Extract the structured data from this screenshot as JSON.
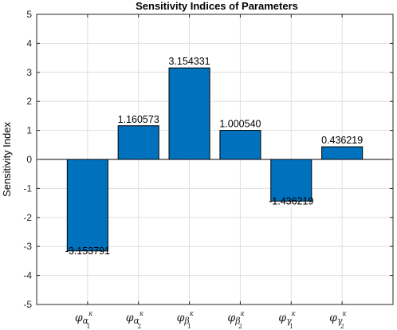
{
  "chart_data": {
    "type": "bar",
    "title": "Sensitivity Indices of Parameters",
    "xlabel": "",
    "ylabel": "Sensitivity Index",
    "ylim": [
      -5,
      5
    ],
    "yticks": [
      -5,
      -4,
      -3,
      -2,
      -1,
      0,
      1,
      2,
      3,
      4,
      5
    ],
    "grid": true,
    "categories": [
      {
        "base": "φ",
        "sub": "α",
        "sup": "κ",
        "subsub": "1"
      },
      {
        "base": "φ",
        "sub": "α",
        "sup": "κ",
        "subsub": "2"
      },
      {
        "base": "φ",
        "sub": "β",
        "sup": "κ",
        "subsub": "1"
      },
      {
        "base": "φ",
        "sub": "β",
        "sup": "κ",
        "subsub": "2"
      },
      {
        "base": "φ",
        "sub": "γ",
        "sup": "κ",
        "subsub": "1"
      },
      {
        "base": "φ",
        "sub": "γ",
        "sup": "κ",
        "subsub": "2"
      }
    ],
    "values": [
      -3.153791,
      1.160573,
      3.154331,
      1.00054,
      -1.436219,
      0.436219
    ],
    "data_labels": [
      "-3.153791",
      "1.160573",
      "3.154331",
      "1.000540",
      "-1.436219",
      "0.436219"
    ],
    "bar_color": "#0072bd"
  }
}
